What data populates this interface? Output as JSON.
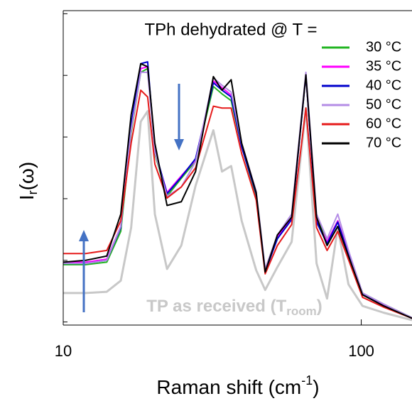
{
  "chart_data": {
    "type": "line",
    "title": "TPh dehydrated @ T =",
    "xlabel": [
      "Raman shift (cm",
      "-1",
      ")"
    ],
    "ylabel": [
      "I",
      "r",
      "(ω)"
    ],
    "annotation": [
      "TP as received (T",
      "room",
      ")"
    ],
    "xscale": "log",
    "xlim": [
      10,
      148
    ],
    "xticks": [
      10,
      100
    ],
    "ylim": [
      -0.05,
      5.05
    ],
    "yticks": [
      0,
      1,
      2,
      3,
      4,
      5
    ],
    "x": [
      10,
      11.9,
      14,
      15.6,
      16.9,
      18.2,
      19.2,
      20.3,
      22.3,
      24.9,
      27.8,
      31.9,
      34.1,
      36.6,
      39.7,
      44.4,
      47.6,
      52.3,
      58.4,
      65.2,
      70.8,
      76.8,
      83.4,
      90.6,
      101,
      119,
      148
    ],
    "series": [
      {
        "color": "#c8c8c8",
        "values": [
          0.47,
          0.47,
          0.49,
          0.67,
          1.53,
          3.25,
          3.42,
          1.75,
          0.86,
          1.24,
          2.21,
          3.11,
          2.44,
          2.53,
          1.64,
          0.84,
          0.52,
          0.89,
          1.3,
          3.47,
          0.95,
          0.38,
          1.53,
          0.61,
          0.26,
          0.15,
          0.03
        ]
      },
      {
        "name": "30 °C",
        "color": "#22b522",
        "values": [
          0.93,
          0.93,
          0.97,
          1.47,
          3.07,
          4.05,
          4.11,
          2.73,
          2.04,
          2.33,
          2.61,
          3.82,
          3.7,
          3.59,
          2.84,
          2.04,
          0.84,
          1.35,
          1.7,
          3.99,
          1.7,
          1.3,
          1.64,
          1.12,
          0.47,
          0.29,
          0.07
        ]
      },
      {
        "name": "35 °C",
        "color": "#ff00ff",
        "values": [
          0.97,
          0.97,
          1.02,
          1.55,
          3.15,
          4.11,
          4.14,
          2.76,
          2.1,
          2.37,
          2.63,
          3.91,
          3.8,
          3.68,
          2.84,
          2.08,
          0.84,
          1.38,
          1.69,
          4.0,
          1.64,
          1.3,
          1.64,
          1.11,
          0.46,
          0.28,
          0.06
        ]
      },
      {
        "name": "40 °C",
        "color": "#0000cc",
        "values": [
          0.95,
          0.95,
          1.0,
          1.53,
          3.19,
          4.19,
          4.22,
          2.79,
          2.08,
          2.35,
          2.65,
          3.88,
          3.76,
          3.65,
          2.84,
          2.08,
          0.81,
          1.35,
          1.66,
          4.01,
          1.62,
          1.27,
          1.62,
          1.09,
          0.45,
          0.26,
          0.06
        ]
      },
      {
        "name": "50 °C",
        "color": "#b48ce6",
        "values": [
          0.95,
          0.95,
          1.0,
          1.55,
          3.11,
          4.05,
          4.05,
          2.76,
          2.04,
          2.19,
          2.6,
          3.96,
          3.84,
          3.73,
          2.9,
          2.12,
          0.86,
          1.41,
          1.75,
          4.05,
          1.75,
          1.35,
          1.75,
          1.16,
          0.47,
          0.29,
          0.07
        ]
      },
      {
        "name": "60 °C",
        "color": "#e61b1b",
        "values": [
          1.11,
          1.11,
          1.16,
          1.64,
          2.9,
          3.76,
          3.65,
          2.56,
          2.01,
          2.19,
          2.5,
          3.5,
          3.47,
          3.47,
          2.73,
          1.98,
          0.78,
          1.24,
          1.58,
          3.47,
          1.53,
          1.16,
          1.47,
          1.01,
          0.4,
          0.24,
          0.06
        ]
      },
      {
        "name": "70 °C",
        "color": "#000000",
        "values": [
          0.97,
          1.0,
          1.07,
          1.75,
          3.36,
          4.19,
          4.14,
          2.9,
          1.89,
          1.95,
          2.44,
          3.98,
          3.76,
          3.93,
          2.9,
          2.1,
          0.81,
          1.41,
          1.7,
          4.01,
          1.7,
          1.24,
          1.55,
          1.07,
          0.44,
          0.26,
          0.06
        ]
      }
    ]
  }
}
